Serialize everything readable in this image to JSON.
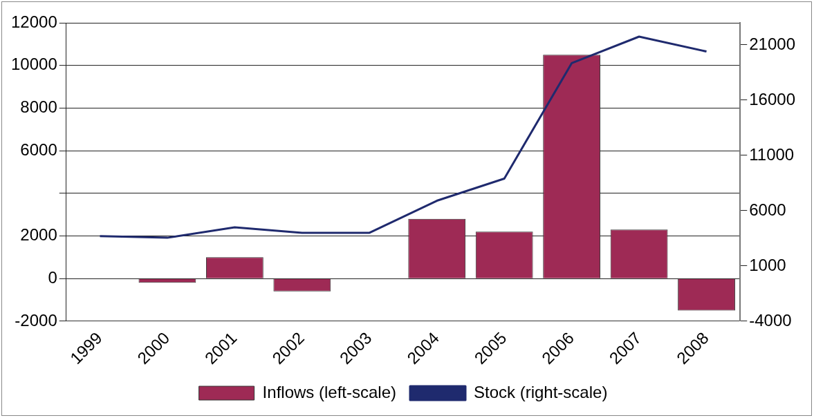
{
  "chart_data": {
    "type": "bar",
    "categories": [
      "1999",
      "2000",
      "2001",
      "2002",
      "2003",
      "2004",
      "2005",
      "2006",
      "2007",
      "2008"
    ],
    "series": [
      {
        "name": "Inflows (left-scale)",
        "color": "#9e2a55",
        "values": [
          null,
          -200,
          1000,
          -600,
          null,
          2800,
          2200,
          10500,
          2300,
          -1500
        ]
      },
      {
        "name": "Stock (right-scale)",
        "type": "line",
        "axis": "y2",
        "color": "#1f2a6e",
        "values": [
          3700,
          3550,
          4500,
          4000,
          4000,
          6900,
          8900,
          19350,
          21750,
          20400
        ]
      }
    ],
    "ylim": [
      -2000,
      12000
    ],
    "yticks": [
      -2000,
      0,
      2000,
      {
        "value": 4000,
        "label": null
      },
      6000,
      8000,
      10000,
      12000
    ],
    "y2lim": [
      -4000,
      23000
    ],
    "y2ticks": [
      -4000,
      1000,
      6000,
      11000,
      16000,
      21000
    ],
    "grid": "y",
    "legend": "bottom",
    "marker": "none",
    "line_style": "solid"
  }
}
